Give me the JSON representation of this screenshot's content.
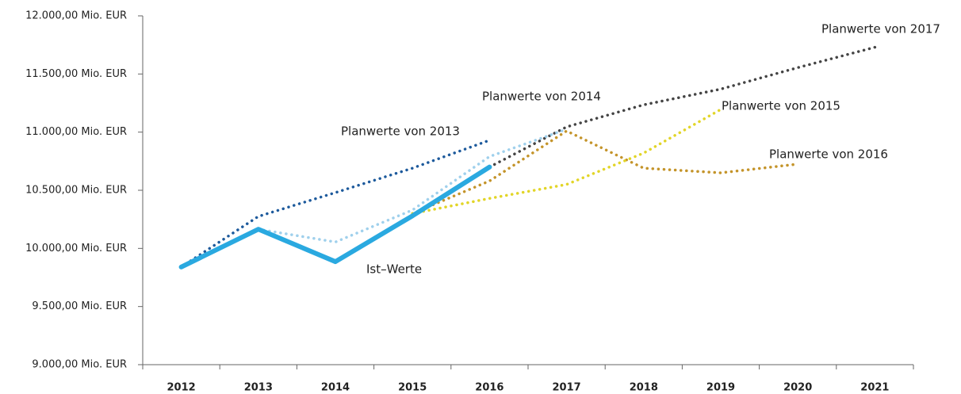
{
  "chart_data": {
    "type": "line",
    "categories": [
      "2012",
      "2013",
      "2014",
      "2015",
      "2016",
      "2017",
      "2018",
      "2019",
      "2020",
      "2021"
    ],
    "series": [
      {
        "name": "Ist–Werte",
        "color": "#2aa9e0",
        "style": "solid",
        "values": [
          9840,
          10165,
          9886,
          10280,
          10700,
          null,
          null,
          null,
          null,
          null
        ]
      },
      {
        "name": "Planwerte von 2013",
        "color": "#1d5a9c",
        "style": "dotted",
        "values": [
          9840,
          10275,
          10480,
          10690,
          10930,
          null,
          null,
          null,
          null,
          null
        ]
      },
      {
        "name": "Planwerte von 2014",
        "color": "#9fd0ec",
        "style": "dotted",
        "values": [
          null,
          10165,
          10055,
          10330,
          10790,
          11025,
          null,
          null,
          null,
          null
        ]
      },
      {
        "name": "Planwerte von 2015",
        "color": "#e2d528",
        "style": "dotted",
        "values": [
          null,
          null,
          null,
          10300,
          10430,
          10550,
          10820,
          11195,
          null,
          null
        ]
      },
      {
        "name": "Planwerte von 2016",
        "color": "#c4942a",
        "style": "dotted",
        "values": [
          null,
          null,
          null,
          10300,
          10580,
          11010,
          10690,
          10650,
          10725,
          null
        ]
      },
      {
        "name": "Planwerte von 2017",
        "color": "#444444",
        "style": "dotted",
        "values": [
          null,
          null,
          null,
          null,
          10700,
          11045,
          11235,
          11370,
          11555,
          11730
        ]
      }
    ],
    "ylim": [
      9000,
      12000
    ],
    "yticks": [
      {
        "value": 9000,
        "label": "9.000,00 Mio. EUR"
      },
      {
        "value": 9500,
        "label": "9.500,00 Mio. EUR"
      },
      {
        "value": 10000,
        "label": "10.000,00 Mio. EUR"
      },
      {
        "value": 10500,
        "label": "10.500,00 Mio. EUR"
      },
      {
        "value": 11000,
        "label": "11.000,00 Mio. EUR"
      },
      {
        "value": 11500,
        "label": "11.500,00 Mio. EUR"
      },
      {
        "value": 12000,
        "label": "12.000,00 Mio. EUR"
      }
    ],
    "grid": false
  }
}
